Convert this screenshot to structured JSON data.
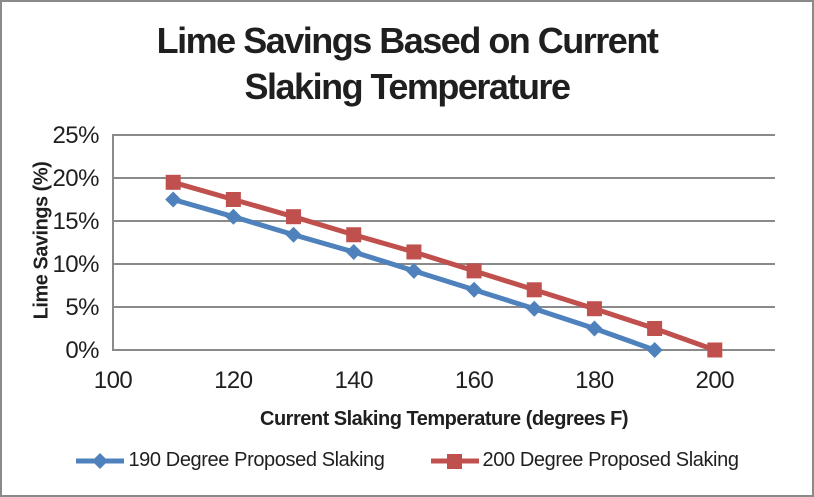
{
  "chart_data": {
    "type": "line",
    "title": "Lime Savings Based on Current Slaking Temperature",
    "xlabel": "Current Slaking Temperature (degrees F)",
    "ylabel": "Lime Savings (%)",
    "xlim": [
      100,
      210
    ],
    "ylim": [
      0,
      25
    ],
    "xticks": [
      100,
      120,
      140,
      160,
      180,
      200
    ],
    "ytick_values": [
      0,
      5,
      10,
      15,
      20,
      25
    ],
    "ytick_labels": [
      "0%",
      "5%",
      "10%",
      "15%",
      "20%",
      "25%"
    ],
    "grid": "horizontal",
    "legend_position": "bottom",
    "series": [
      {
        "name": "190 Degree Proposed Slaking",
        "color": "#4F81BD",
        "marker": "diamond",
        "x": [
          110,
          120,
          130,
          140,
          150,
          160,
          170,
          180,
          190
        ],
        "y": [
          17.5,
          15.5,
          13.4,
          11.4,
          9.2,
          7.0,
          4.8,
          2.5,
          0.0
        ]
      },
      {
        "name": "200 Degree Proposed Slaking",
        "color": "#C0504D",
        "marker": "square",
        "x": [
          110,
          120,
          130,
          140,
          150,
          160,
          170,
          180,
          190,
          200
        ],
        "y": [
          19.5,
          17.5,
          15.5,
          13.4,
          11.4,
          9.2,
          7.0,
          4.8,
          2.5,
          0.0
        ]
      }
    ],
    "colors": {
      "gridline": "#8a8a8a",
      "axis_line": "#8a8a8a",
      "text": "#1f1f1f",
      "background": "#ffffff",
      "outer_border": "#8a8a8a"
    }
  }
}
